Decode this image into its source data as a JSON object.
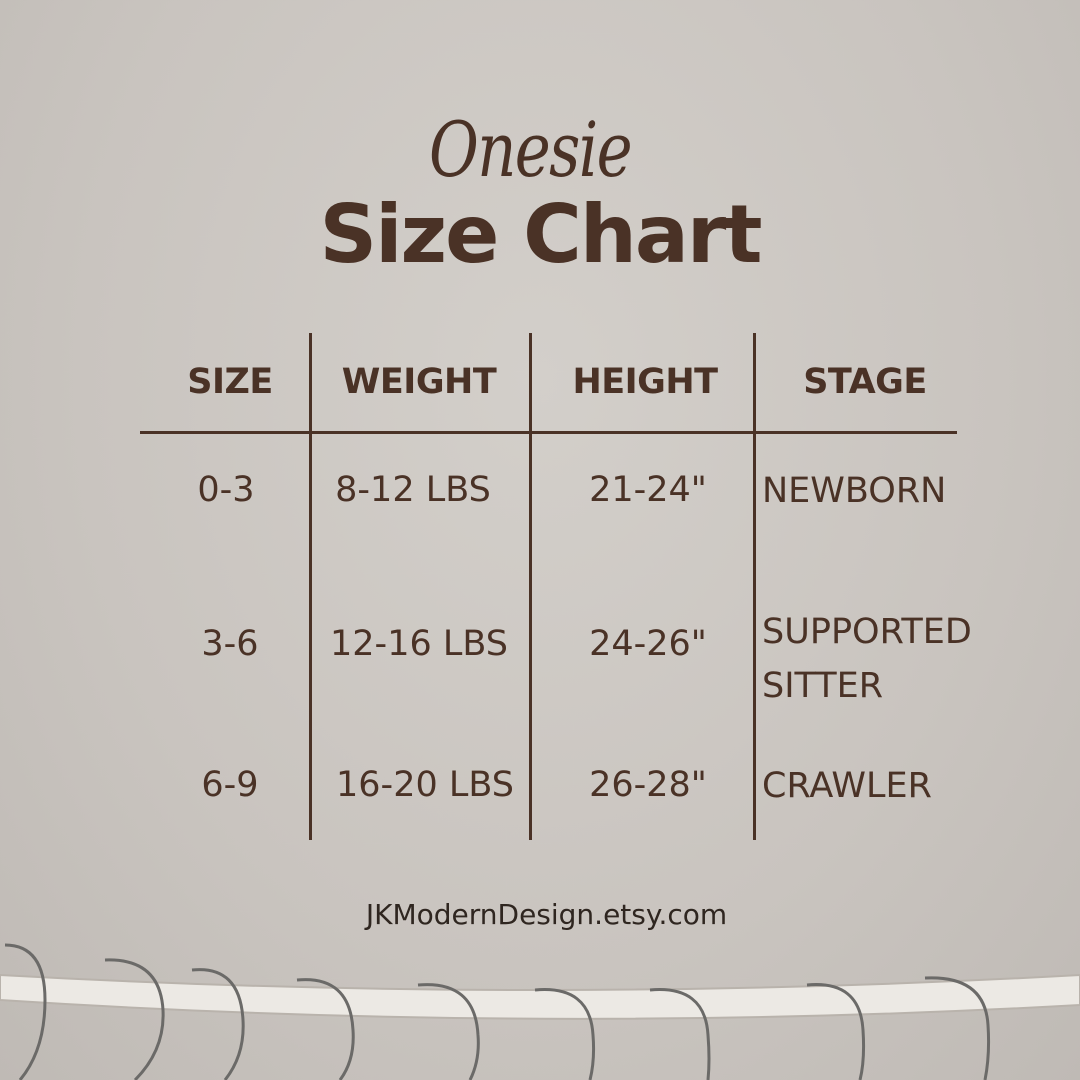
{
  "title": {
    "script": "Onesie",
    "main": "Size Chart"
  },
  "table": {
    "headers": [
      "SIZE",
      "WEIGHT",
      "HEIGHT",
      "STAGE"
    ],
    "rows": [
      {
        "size": "0-3",
        "weight": "8-12 LBS",
        "height": "21-24\"",
        "stage": [
          "NEWBORN"
        ]
      },
      {
        "size": "3-6",
        "weight": "12-16 LBS",
        "height": "24-26\"",
        "stage": [
          "SUPPORTED",
          "SITTER"
        ]
      },
      {
        "size": "6-9",
        "weight": "16-20 LBS",
        "height": "26-28\"",
        "stage": [
          "CRAWLER"
        ]
      }
    ]
  },
  "footer": "JKModernDesign.etsy.com",
  "colors": {
    "text": "#4a3226",
    "background": "#cbc6c1"
  }
}
